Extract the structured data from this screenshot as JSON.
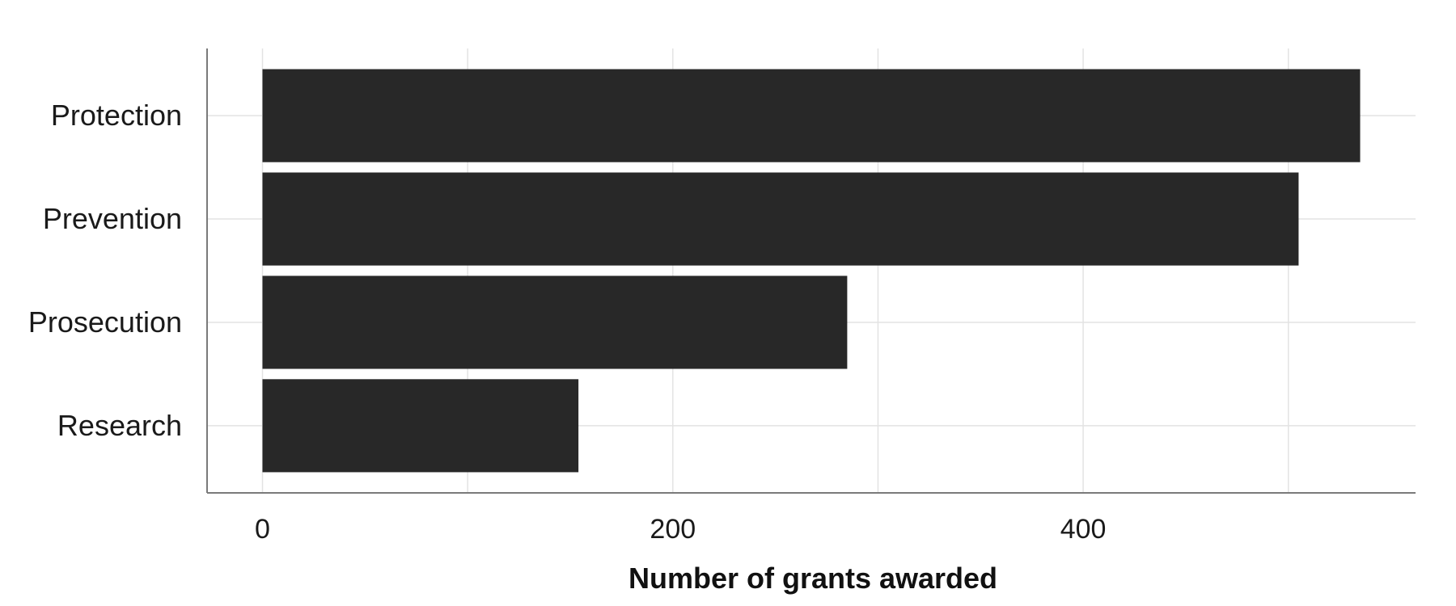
{
  "chart_data": {
    "type": "bar",
    "orientation": "horizontal",
    "categories": [
      "Protection",
      "Prevention",
      "Prosecution",
      "Research"
    ],
    "values": [
      535,
      505,
      285,
      154
    ],
    "xlabel": "Number of grants awarded",
    "ylabel": "",
    "xlim": [
      -27,
      562
    ],
    "x_ticks": [
      0,
      200,
      400
    ],
    "x_tick_labels": [
      "0",
      "200",
      "400"
    ],
    "grid": true,
    "bar_color": "#282828",
    "grid_color": "#e3e3e3",
    "axis_color": "#7a7a7a"
  }
}
